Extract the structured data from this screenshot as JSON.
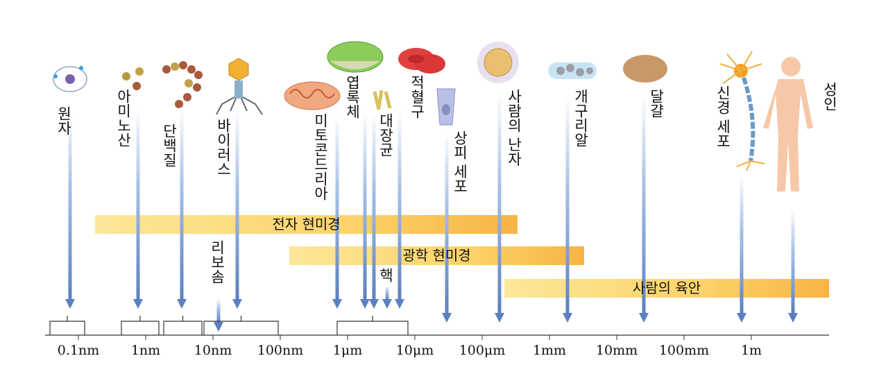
{
  "items": [
    {
      "label": "원자"
    },
    {
      "label": "아미노산"
    },
    {
      "label": "단백질"
    },
    {
      "label": "바이러스"
    },
    {
      "label": "리보솜"
    },
    {
      "label": "미토콘드리아"
    },
    {
      "label": "엽록체"
    },
    {
      "label": "대장균"
    },
    {
      "label": "핵"
    },
    {
      "label": "적혈구"
    },
    {
      "label": "상피 세포"
    },
    {
      "label": "사람의 난자"
    },
    {
      "label": "개구리알"
    },
    {
      "label": "달걀"
    },
    {
      "label": "신경 세포"
    },
    {
      "label": "성인"
    }
  ],
  "ranges": [
    {
      "label": "전자 현미경"
    },
    {
      "label": "광학 현미경"
    },
    {
      "label": "사람의 육안"
    }
  ],
  "axis": {
    "ticks": [
      "0.1nm",
      "1nm",
      "10nm",
      "100nm",
      "1μm",
      "10μm",
      "100μm",
      "1mm",
      "10mm",
      "100mm",
      "1m"
    ]
  }
}
